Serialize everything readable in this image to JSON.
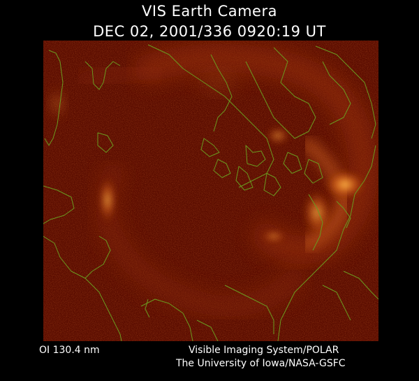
{
  "header": {
    "title": "VIS Earth Camera",
    "timestamp": "DEC 02, 2001/336 0920:19 UT"
  },
  "footer": {
    "filter": "OI  130.4 nm",
    "instrument": "Visible Imaging System/POLAR",
    "institution": "The University of Iowa/NASA-GSFC"
  },
  "colors": {
    "background": "#000000",
    "image_base": "#5a0c00",
    "aurora_bright": "#ffae3c",
    "coastline": "#6a9a20",
    "text": "#ffffff"
  }
}
